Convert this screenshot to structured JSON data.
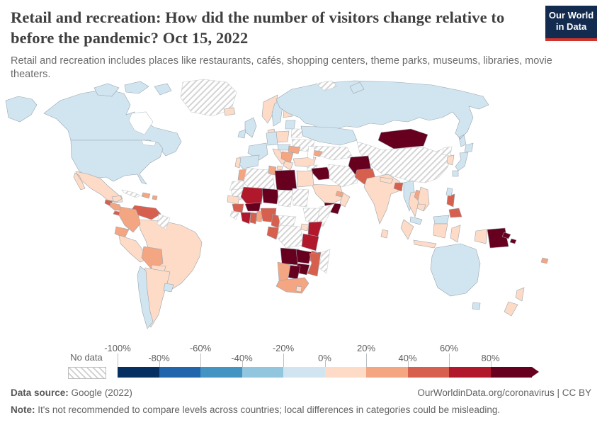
{
  "header": {
    "title": "Retail and recreation: How did the number of visitors change relative to before the pandemic? Oct 15, 2022",
    "logo": {
      "line1": "Our World",
      "line2": "in Data",
      "bg": "#122b4f",
      "stripe": "#d0342c"
    }
  },
  "subtitle": "Retail and recreation includes places like restaurants, cafés, shopping centers, theme parks, museums, libraries, movie theaters.",
  "legend": {
    "no_data_label": "No data",
    "ticks": [
      "-100%",
      "-80%",
      "-60%",
      "-40%",
      "-20%",
      "0%",
      "20%",
      "40%",
      "60%",
      "80%"
    ]
  },
  "chart_data": {
    "type": "choropleth",
    "title": "Retail and recreation: change in number of visitors relative to pre-pandemic baseline",
    "date": "Oct 15, 2022",
    "unit": "% change vs pre-pandemic baseline",
    "legend_position": "bottom",
    "bucket_order": [
      "b1",
      "b2",
      "b3",
      "b4",
      "b5",
      "b6",
      "b7",
      "b8",
      "b9",
      "b10"
    ],
    "buckets": {
      "b1": {
        "range": "-100% to -80%",
        "color": "#053061"
      },
      "b2": {
        "range": "-80% to -60%",
        "color": "#2166ac"
      },
      "b3": {
        "range": "-60% to -40%",
        "color": "#4393c3"
      },
      "b4": {
        "range": "-40% to -20%",
        "color": "#92c5de"
      },
      "b5": {
        "range": "-20% to 0%",
        "color": "#d1e5f0"
      },
      "b6": {
        "range": "0% to 20%",
        "color": "#fddbc7"
      },
      "b7": {
        "range": "20% to 40%",
        "color": "#f4a582"
      },
      "b8": {
        "range": "40% to 60%",
        "color": "#d6604d"
      },
      "b9": {
        "range": "60% to 80%",
        "color": "#b2182b"
      },
      "b10": {
        "range": "80%+",
        "color": "#67001f"
      }
    },
    "no_data": {
      "key": "nd",
      "label": "No data",
      "pattern": "diagonal-hatch",
      "pattern_color": "#cfcfcf"
    },
    "countries": {
      "canada": "b5",
      "alaska": "b5",
      "usa": "b5",
      "arctic-islands": "b5",
      "greenland": "nd",
      "iceland": "b6",
      "mexico": "b6",
      "guatemala": "b8",
      "honduras-nicaragua": "b7",
      "costa-rica-panama": "b8",
      "cuba": "nd",
      "hispaniola": "b7",
      "puerto-rico": "b7",
      "venezuela": "b8",
      "guyanas": "nd",
      "colombia": "b7",
      "ecuador": "b7",
      "peru": "b6",
      "brazil": "b6",
      "bolivia": "b7",
      "paraguay": "b6",
      "argentina": "b6",
      "uruguay": "b5",
      "chile": "b5",
      "uk": "b5",
      "ireland": "b5",
      "norway": "b6",
      "sweden": "b5",
      "finland": "b6",
      "denmark": "b6",
      "baltics": "b5",
      "belarus": "nd",
      "ukraine": "nd",
      "poland": "b6",
      "germany": "b5",
      "france": "b5",
      "spain": "b5",
      "portugal": "b6",
      "italy": "b6",
      "central-europe": "b5",
      "balkans": "b7",
      "romania": "b7",
      "greece": "b6",
      "turkey": "b6",
      "russia": "b5",
      "svalbard": "nd",
      "kazakhstan": "b5",
      "central-asia": "nd",
      "caucasus": "b7",
      "syria": "nd",
      "iraq": "b10",
      "iran": "nd",
      "israel-jordan": "b7",
      "saudi-arabia": "b6",
      "yemen": "b10",
      "oman": "b6",
      "uae": "b7",
      "morocco": "b7",
      "western-sahara": "nd",
      "algeria": "nd",
      "tunisia": "b7",
      "libya": "b10",
      "egypt": "b6",
      "mauritania": "nd",
      "mali": "b9",
      "niger": "b10",
      "chad": "nd",
      "sudan": "nd",
      "ethiopia": "nd",
      "somalia": "nd",
      "senegal": "b6",
      "guinea": "b8",
      "sierra-leone-liberia": "nd",
      "ivory-coast": "b9",
      "ghana": "b8",
      "togo-benin": "b7",
      "burkina-faso": "b10",
      "nigeria": "b8",
      "cameroon": "b8",
      "central-african-republic": "nd",
      "congo-gabon": "b8",
      "drc": "nd",
      "uganda": "b6",
      "kenya": "b9",
      "tanzania": "b9",
      "angola": "b10",
      "zambia": "b10",
      "malawi": "b8",
      "mozambique": "b8",
      "zimbabwe": "b10",
      "botswana": "b10",
      "namibia": "b7",
      "south-africa": "b7",
      "lesotho": "b6",
      "madagascar": "nd",
      "afghanistan": "b10",
      "pakistan": "b8",
      "india": "b6",
      "nepal": "b6",
      "bangladesh": "b8",
      "sri-lanka": "b6",
      "myanmar": "b5",
      "thailand": "b6",
      "laos": "b7",
      "vietnam": "b6",
      "cambodia": "b6",
      "malaysia": "b5",
      "borneo-malaysia": "b5",
      "sumatra": "b6",
      "java": "b6",
      "borneo-indonesia": "b6",
      "sulawesi": "b6",
      "lesser-sunda": "b6",
      "west-papua": "b6",
      "papua-new-guinea": "b10",
      "new-britain": "b10",
      "solomon-islands": "b10",
      "philippines": "b8",
      "taiwan": "b5",
      "south-korea": "b6",
      "north-korea": "nd",
      "japan": "b5",
      "mongolia": "b10",
      "china": "nd",
      "australia": "b5",
      "tasmania": "b5",
      "new-zealand": "b6",
      "fiji": "b7"
    }
  },
  "footer": {
    "source_label": "Data source:",
    "source_value": " Google (2022)",
    "link": "OurWorldinData.org/coronavirus | CC BY",
    "note_label": "Note:",
    "note_value": " It's not recommended to compare levels across countries; local differences in categories could be misleading."
  }
}
